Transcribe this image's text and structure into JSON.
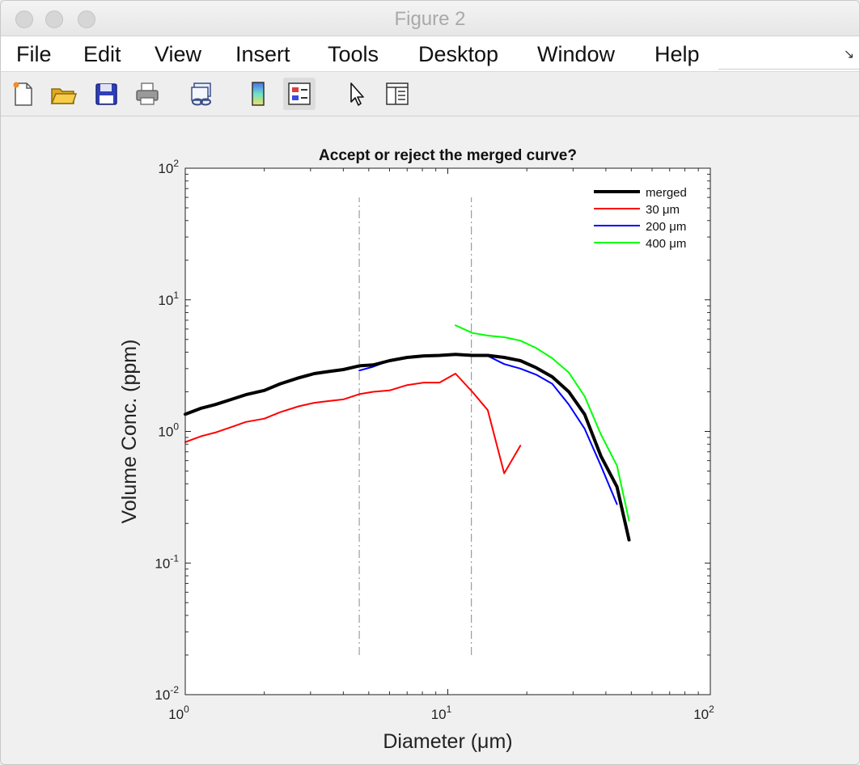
{
  "window": {
    "title": "Figure 2"
  },
  "menu": [
    "File",
    "Edit",
    "View",
    "Insert",
    "Tools",
    "Desktop",
    "Window",
    "Help"
  ],
  "toolbar": {
    "buttons": [
      "new-figure",
      "open-file",
      "save-figure",
      "print-figure",
      "link-plot",
      "insert-colorbar",
      "insert-legend",
      "edit-plot",
      "open-property-inspector"
    ]
  },
  "chart_data": {
    "type": "line",
    "title": "Accept or reject the merged curve?",
    "xlabel": "Diameter (μm)",
    "ylabel": "Volume Conc. (ppm)",
    "xscale": "log",
    "yscale": "log",
    "xlim": [
      1,
      100
    ],
    "ylim": [
      0.01,
      100
    ],
    "x_ticks": [
      {
        "base": "10",
        "exp": "0"
      },
      {
        "base": "10",
        "exp": "1"
      },
      {
        "base": "10",
        "exp": "2"
      }
    ],
    "y_ticks": [
      {
        "base": "10",
        "exp": "-2"
      },
      {
        "base": "10",
        "exp": "-1"
      },
      {
        "base": "10",
        "exp": "0"
      },
      {
        "base": "10",
        "exp": "1"
      },
      {
        "base": "10",
        "exp": "2"
      }
    ],
    "legend_placement": "top-right",
    "grid": false,
    "series": [
      {
        "name": "merged",
        "color": "#000000",
        "width": 4,
        "x": [
          1.0,
          1.15,
          1.3,
          1.5,
          1.7,
          2.0,
          2.3,
          2.7,
          3.1,
          3.5,
          4.0,
          4.6,
          5.2,
          6.0,
          7.0,
          8.1,
          9.3,
          10.7,
          12.4,
          14.2,
          16.4,
          18.9,
          21.7,
          25.0,
          28.9,
          33.2,
          38.3,
          44.1,
          49.0
        ],
        "y": [
          1.35,
          1.5,
          1.6,
          1.75,
          1.9,
          2.05,
          2.3,
          2.55,
          2.75,
          2.85,
          2.95,
          3.15,
          3.2,
          3.45,
          3.65,
          3.75,
          3.78,
          3.85,
          3.78,
          3.78,
          3.65,
          3.45,
          3.05,
          2.6,
          2.0,
          1.35,
          0.65,
          0.38,
          0.15
        ]
      },
      {
        "name": "30 μm",
        "color": "#ff0000",
        "width": 2,
        "x": [
          1.0,
          1.15,
          1.3,
          1.5,
          1.7,
          2.0,
          2.3,
          2.7,
          3.1,
          3.5,
          4.0,
          4.6,
          5.2,
          6.0,
          7.0,
          8.1,
          9.3,
          10.7,
          12.4,
          14.2,
          16.4,
          18.9
        ],
        "y": [
          0.83,
          0.92,
          0.98,
          1.08,
          1.18,
          1.25,
          1.4,
          1.55,
          1.65,
          1.7,
          1.75,
          1.92,
          2.0,
          2.05,
          2.25,
          2.35,
          2.35,
          2.75,
          2.0,
          1.45,
          0.48,
          0.78
        ]
      },
      {
        "name": "200 μm",
        "color": "#0000ff",
        "width": 2,
        "x": [
          4.6,
          5.2,
          6.0,
          7.0,
          8.1,
          9.3,
          10.7,
          12.4,
          14.2,
          16.4,
          18.9,
          21.7,
          25.0,
          28.9,
          33.2,
          38.3,
          44.1
        ],
        "y": [
          2.9,
          3.1,
          3.45,
          3.65,
          3.75,
          3.78,
          3.85,
          3.78,
          3.75,
          3.25,
          3.0,
          2.7,
          2.3,
          1.6,
          1.05,
          0.55,
          0.28
        ]
      },
      {
        "name": "400 μm",
        "color": "#00ff00",
        "width": 2,
        "x": [
          10.7,
          12.4,
          14.2,
          16.4,
          18.9,
          21.7,
          25.0,
          28.9,
          33.2,
          38.3,
          44.1,
          49.0
        ],
        "y": [
          6.4,
          5.6,
          5.35,
          5.2,
          4.9,
          4.3,
          3.6,
          2.8,
          1.85,
          0.95,
          0.55,
          0.21
        ]
      }
    ],
    "reference_lines": [
      {
        "x": 4.6,
        "y": [
          0.02,
          60
        ],
        "color": "#888888",
        "style": "dash-dot"
      },
      {
        "x": 12.3,
        "y": [
          0.02,
          60
        ],
        "color": "#888888",
        "style": "dash-dot"
      }
    ]
  }
}
